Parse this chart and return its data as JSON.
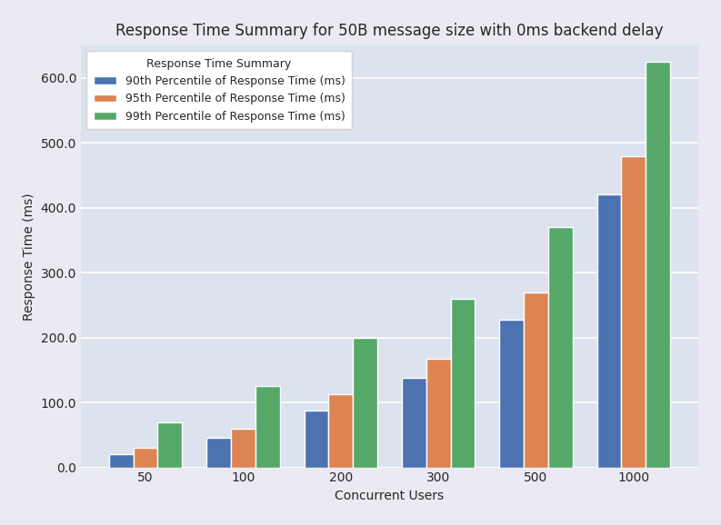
{
  "title": "Response Time Summary for 50B message size with 0ms backend delay",
  "legend_title": "Response Time Summary",
  "xlabel": "Concurrent Users",
  "ylabel": "Response Time (ms)",
  "categories": [
    50,
    100,
    200,
    300,
    500,
    1000
  ],
  "series": [
    {
      "label": "90th Percentile of Response Time (ms)",
      "color": "#4c72b0",
      "values": [
        20,
        45,
        88,
        138,
        228,
        420
      ]
    },
    {
      "label": "95th Percentile of Response Time (ms)",
      "color": "#dd8452",
      "values": [
        30,
        60,
        113,
        168,
        270,
        480
      ]
    },
    {
      "label": "99th Percentile of Response Time (ms)",
      "color": "#55a868",
      "values": [
        70,
        125,
        200,
        260,
        370,
        625
      ]
    }
  ],
  "ylim": [
    0,
    650
  ],
  "plot_bg_color": "#dce3ef",
  "fig_bg_color": "#eaeaf2",
  "grid_color": "#ffffff",
  "title_fontsize": 12,
  "label_fontsize": 10,
  "tick_fontsize": 10,
  "legend_fontsize": 9,
  "bar_width": 0.25,
  "yticks": [
    0.0,
    100.0,
    200.0,
    300.0,
    400.0,
    500.0,
    600.0
  ]
}
